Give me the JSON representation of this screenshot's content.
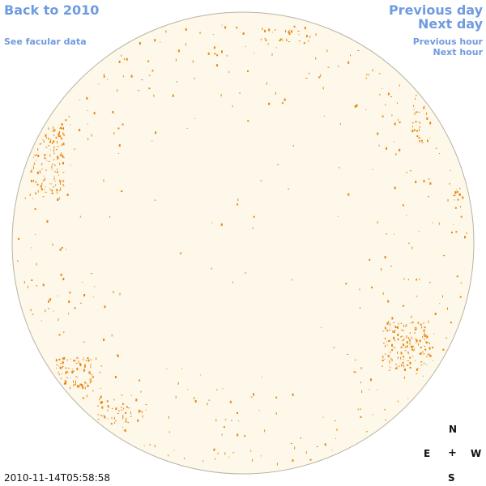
{
  "nav": {
    "back": "Back to 2010",
    "facular": "See facular data",
    "prev_day": "Previous day",
    "next_day": "Next day",
    "prev_hour": "Previous hour",
    "next_hour": "Next hour"
  },
  "compass": {
    "north": "N",
    "east": "E",
    "center": "+",
    "west": "W",
    "south": "S"
  },
  "timestamp": "2010-11-14T05:58:58",
  "colors": {
    "disk": "#fdf8ea",
    "disk_border": "#b9b3a3",
    "feature": "#e8860f",
    "link": "#6f9be0"
  }
}
